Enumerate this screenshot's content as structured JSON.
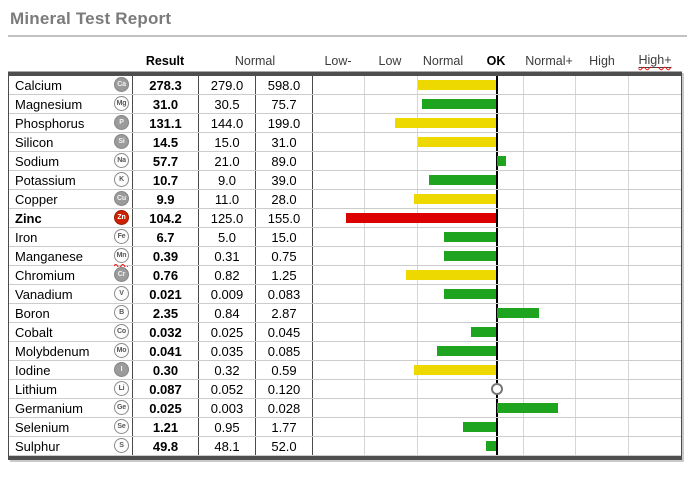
{
  "title": "Mineral Test Report",
  "header": {
    "result": "Result",
    "normal": "Normal",
    "scale": [
      "Low-",
      "Low",
      "Normal",
      "OK",
      "Normal+",
      "High",
      "High+"
    ]
  },
  "colors": {
    "yellow": "#EDD800",
    "green": "#1FA41F",
    "red": "#DD0000",
    "ok_line": "#000000",
    "gridline": "#D6D6D6"
  },
  "rows": [
    {
      "name": "Calcium",
      "symbol": "Ca",
      "icon": "filled",
      "result": "278.3",
      "normal_min": "279.0",
      "normal_max": "598.0",
      "bar": {
        "color": "yellow",
        "from": 105,
        "to": 183
      }
    },
    {
      "name": "Magnesium",
      "symbol": "Mg",
      "icon": "outline",
      "result": "31.0",
      "normal_min": "30.5",
      "normal_max": "75.7",
      "bar": {
        "color": "green",
        "from": 109,
        "to": 183
      }
    },
    {
      "name": "Phosphorus",
      "symbol": "P",
      "icon": "filled",
      "result": "131.1",
      "normal_min": "144.0",
      "normal_max": "199.0",
      "bar": {
        "color": "yellow",
        "from": 82,
        "to": 183
      }
    },
    {
      "name": "Silicon",
      "symbol": "Si",
      "icon": "filled",
      "result": "14.5",
      "normal_min": "15.0",
      "normal_max": "31.0",
      "bar": {
        "color": "yellow",
        "from": 105,
        "to": 183
      }
    },
    {
      "name": "Sodium",
      "symbol": "Na",
      "icon": "outline",
      "result": "57.7",
      "normal_min": "21.0",
      "normal_max": "89.0",
      "bar": {
        "color": "green",
        "from": 184,
        "to": 193
      }
    },
    {
      "name": "Potassium",
      "symbol": "K",
      "icon": "outline",
      "result": "10.7",
      "normal_min": "9.0",
      "normal_max": "39.0",
      "bar": {
        "color": "green",
        "from": 116,
        "to": 183
      }
    },
    {
      "name": "Copper",
      "symbol": "Cu",
      "icon": "filled",
      "result": "9.9",
      "normal_min": "11.0",
      "normal_max": "28.0",
      "bar": {
        "color": "yellow",
        "from": 101,
        "to": 183
      }
    },
    {
      "name": "Zinc",
      "symbol": "Zn",
      "icon": "red",
      "name_bold": true,
      "result": "104.2",
      "normal_min": "125.0",
      "normal_max": "155.0",
      "bar": {
        "color": "red",
        "from": 33,
        "to": 183
      }
    },
    {
      "name": "Iron",
      "symbol": "Fe",
      "icon": "outline",
      "result": "6.7",
      "normal_min": "5.0",
      "normal_max": "15.0",
      "bar": {
        "color": "green",
        "from": 131,
        "to": 183
      }
    },
    {
      "name": "Manganese",
      "symbol": "Mn",
      "icon": "outline",
      "icon_squiggle": true,
      "result": "0.39",
      "normal_min": "0.31",
      "normal_max": "0.75",
      "bar": {
        "color": "green",
        "from": 131,
        "to": 183
      }
    },
    {
      "name": "Chromium",
      "symbol": "Cr",
      "icon": "filled",
      "result": "0.76",
      "normal_min": "0.82",
      "normal_max": "1.25",
      "bar": {
        "color": "yellow",
        "from": 93,
        "to": 183
      }
    },
    {
      "name": "Vanadium",
      "symbol": "V",
      "icon": "outline",
      "result": "0.021",
      "normal_min": "0.009",
      "normal_max": "0.083",
      "bar": {
        "color": "green",
        "from": 131,
        "to": 183
      }
    },
    {
      "name": "Boron",
      "symbol": "B",
      "icon": "outline",
      "result": "2.35",
      "normal_min": "0.84",
      "normal_max": "2.87",
      "bar": {
        "color": "green",
        "from": 184,
        "to": 226
      }
    },
    {
      "name": "Cobalt",
      "symbol": "Co",
      "icon": "outline",
      "result": "0.032",
      "normal_min": "0.025",
      "normal_max": "0.045",
      "bar": {
        "color": "green",
        "from": 158,
        "to": 183
      }
    },
    {
      "name": "Molybdenum",
      "symbol": "Mo",
      "icon": "outline",
      "result": "0.041",
      "normal_min": "0.035",
      "normal_max": "0.085",
      "bar": {
        "color": "green",
        "from": 124,
        "to": 183
      }
    },
    {
      "name": "Iodine",
      "symbol": "I",
      "icon": "filled",
      "result": "0.30",
      "normal_min": "0.32",
      "normal_max": "0.59",
      "bar": {
        "color": "yellow",
        "from": 101,
        "to": 183
      }
    },
    {
      "name": "Lithium",
      "symbol": "Li",
      "icon": "outline",
      "result": "0.087",
      "normal_min": "0.052",
      "normal_max": "0.120",
      "marker": "circle"
    },
    {
      "name": "Germanium",
      "symbol": "Ge",
      "icon": "outline",
      "result": "0.025",
      "normal_min": "0.003",
      "normal_max": "0.028",
      "bar": {
        "color": "green",
        "from": 184,
        "to": 245
      }
    },
    {
      "name": "Selenium",
      "symbol": "Se",
      "icon": "outline",
      "result": "1.21",
      "normal_min": "0.95",
      "normal_max": "1.77",
      "bar": {
        "color": "green",
        "from": 150,
        "to": 183
      }
    },
    {
      "name": "Sulphur",
      "symbol": "S",
      "icon": "outline",
      "result": "49.8",
      "normal_min": "48.1",
      "normal_max": "52.0",
      "bar": {
        "color": "green",
        "from": 173,
        "to": 183
      }
    }
  ],
  "chart_data": {
    "type": "bar",
    "orientation": "horizontal",
    "title": "Mineral Test Report",
    "categories": [
      "Calcium",
      "Magnesium",
      "Phosphorus",
      "Silicon",
      "Sodium",
      "Potassium",
      "Copper",
      "Zinc",
      "Iron",
      "Manganese",
      "Chromium",
      "Vanadium",
      "Boron",
      "Cobalt",
      "Molybdenum",
      "Iodine",
      "Lithium",
      "Germanium",
      "Selenium",
      "Sulphur"
    ],
    "series": [
      {
        "name": "Result",
        "values": [
          278.3,
          31.0,
          131.1,
          14.5,
          57.7,
          10.7,
          9.9,
          104.2,
          6.7,
          0.39,
          0.76,
          0.021,
          2.35,
          0.032,
          0.041,
          0.3,
          0.087,
          0.025,
          1.21,
          49.8
        ]
      },
      {
        "name": "Normal min",
        "values": [
          279.0,
          30.5,
          144.0,
          15.0,
          21.0,
          9.0,
          11.0,
          125.0,
          5.0,
          0.31,
          0.82,
          0.009,
          0.84,
          0.025,
          0.035,
          0.32,
          0.052,
          0.003,
          0.95,
          48.1
        ]
      },
      {
        "name": "Normal max",
        "values": [
          598.0,
          75.7,
          199.0,
          31.0,
          89.0,
          39.0,
          28.0,
          155.0,
          15.0,
          0.75,
          1.25,
          0.083,
          2.87,
          0.045,
          0.085,
          0.59,
          0.12,
          0.028,
          1.77,
          52.0
        ]
      }
    ],
    "x_axis_labels": [
      "Low-",
      "Low",
      "Normal",
      "OK",
      "Normal+",
      "High",
      "High+"
    ],
    "bar_status": [
      "yellow",
      "green",
      "yellow",
      "yellow",
      "green",
      "green",
      "yellow",
      "red",
      "green",
      "green",
      "yellow",
      "green",
      "green",
      "green",
      "green",
      "yellow",
      "marker-at-ok",
      "green",
      "green",
      "green"
    ],
    "grid": true,
    "legend_position": "none",
    "reference_line": "OK"
  }
}
